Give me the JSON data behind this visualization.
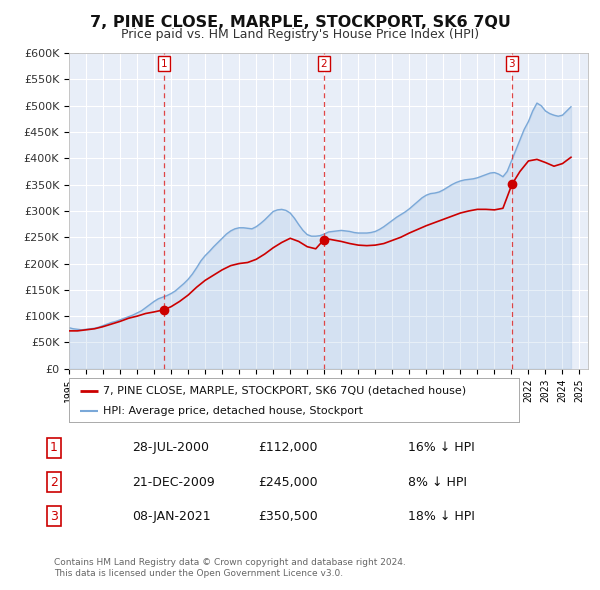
{
  "title": "7, PINE CLOSE, MARPLE, STOCKPORT, SK6 7QU",
  "subtitle": "Price paid vs. HM Land Registry's House Price Index (HPI)",
  "bg_color": "#ffffff",
  "plot_bg_color": "#e8eef8",
  "grid_color": "#ffffff",
  "hpi_color": "#7aa8d8",
  "price_color": "#cc0000",
  "marker_color": "#cc0000",
  "ylim": [
    0,
    600000
  ],
  "yticks": [
    0,
    50000,
    100000,
    150000,
    200000,
    250000,
    300000,
    350000,
    400000,
    450000,
    500000,
    550000,
    600000
  ],
  "xlim_start": 1995.0,
  "xlim_end": 2025.5,
  "sales": [
    {
      "num": 1,
      "date": "28-JUL-2000",
      "year": 2000.57,
      "price": 112000,
      "pct": "16%",
      "dir": "↓"
    },
    {
      "num": 2,
      "date": "21-DEC-2009",
      "year": 2009.97,
      "price": 245000,
      "pct": "8%",
      "dir": "↓"
    },
    {
      "num": 3,
      "date": "08-JAN-2021",
      "year": 2021.03,
      "price": 350500,
      "pct": "18%",
      "dir": "↓"
    }
  ],
  "legend_label_price": "7, PINE CLOSE, MARPLE, STOCKPORT, SK6 7QU (detached house)",
  "legend_label_hpi": "HPI: Average price, detached house, Stockport",
  "footer1": "Contains HM Land Registry data © Crown copyright and database right 2024.",
  "footer2": "This data is licensed under the Open Government Licence v3.0.",
  "hpi_data_x": [
    1995.0,
    1995.25,
    1995.5,
    1995.75,
    1996.0,
    1996.25,
    1996.5,
    1996.75,
    1997.0,
    1997.25,
    1997.5,
    1997.75,
    1998.0,
    1998.25,
    1998.5,
    1998.75,
    1999.0,
    1999.25,
    1999.5,
    1999.75,
    2000.0,
    2000.25,
    2000.5,
    2000.75,
    2001.0,
    2001.25,
    2001.5,
    2001.75,
    2002.0,
    2002.25,
    2002.5,
    2002.75,
    2003.0,
    2003.25,
    2003.5,
    2003.75,
    2004.0,
    2004.25,
    2004.5,
    2004.75,
    2005.0,
    2005.25,
    2005.5,
    2005.75,
    2006.0,
    2006.25,
    2006.5,
    2006.75,
    2007.0,
    2007.25,
    2007.5,
    2007.75,
    2008.0,
    2008.25,
    2008.5,
    2008.75,
    2009.0,
    2009.25,
    2009.5,
    2009.75,
    2010.0,
    2010.25,
    2010.5,
    2010.75,
    2011.0,
    2011.25,
    2011.5,
    2011.75,
    2012.0,
    2012.25,
    2012.5,
    2012.75,
    2013.0,
    2013.25,
    2013.5,
    2013.75,
    2014.0,
    2014.25,
    2014.5,
    2014.75,
    2015.0,
    2015.25,
    2015.5,
    2015.75,
    2016.0,
    2016.25,
    2016.5,
    2016.75,
    2017.0,
    2017.25,
    2017.5,
    2017.75,
    2018.0,
    2018.25,
    2018.5,
    2018.75,
    2019.0,
    2019.25,
    2019.5,
    2019.75,
    2020.0,
    2020.25,
    2020.5,
    2020.75,
    2021.0,
    2021.25,
    2021.5,
    2021.75,
    2022.0,
    2022.25,
    2022.5,
    2022.75,
    2023.0,
    2023.25,
    2023.5,
    2023.75,
    2024.0,
    2024.25,
    2024.5
  ],
  "hpi_data_y": [
    78000,
    76000,
    75000,
    74000,
    75000,
    76000,
    77000,
    79000,
    82000,
    85000,
    88000,
    90000,
    93000,
    96000,
    99000,
    102000,
    106000,
    110000,
    116000,
    122000,
    128000,
    133000,
    136000,
    139000,
    143000,
    148000,
    155000,
    162000,
    170000,
    180000,
    192000,
    205000,
    215000,
    223000,
    232000,
    240000,
    248000,
    256000,
    262000,
    266000,
    268000,
    268000,
    267000,
    266000,
    270000,
    276000,
    283000,
    291000,
    299000,
    302000,
    303000,
    301000,
    296000,
    286000,
    274000,
    263000,
    255000,
    252000,
    252000,
    253000,
    256000,
    260000,
    261000,
    262000,
    263000,
    262000,
    261000,
    259000,
    258000,
    258000,
    258000,
    259000,
    261000,
    265000,
    270000,
    276000,
    282000,
    288000,
    293000,
    298000,
    304000,
    311000,
    318000,
    325000,
    330000,
    333000,
    334000,
    336000,
    340000,
    345000,
    350000,
    354000,
    357000,
    359000,
    360000,
    361000,
    363000,
    366000,
    369000,
    372000,
    373000,
    370000,
    365000,
    375000,
    395000,
    415000,
    435000,
    455000,
    470000,
    490000,
    505000,
    500000,
    490000,
    485000,
    482000,
    480000,
    482000,
    490000,
    498000
  ],
  "price_data_x": [
    1995.0,
    1995.5,
    1996.0,
    1996.5,
    1997.0,
    1997.5,
    1998.0,
    1998.5,
    1999.0,
    1999.5,
    2000.0,
    2000.57,
    2001.0,
    2001.5,
    2002.0,
    2002.5,
    2003.0,
    2003.5,
    2004.0,
    2004.5,
    2005.0,
    2005.5,
    2006.0,
    2006.5,
    2007.0,
    2007.5,
    2008.0,
    2008.5,
    2009.0,
    2009.5,
    2009.97,
    2010.0,
    2010.5,
    2011.0,
    2011.5,
    2012.0,
    2012.5,
    2013.0,
    2013.5,
    2014.0,
    2014.5,
    2015.0,
    2015.5,
    2016.0,
    2016.5,
    2017.0,
    2017.5,
    2018.0,
    2018.5,
    2019.0,
    2019.5,
    2020.0,
    2020.5,
    2021.03,
    2021.5,
    2022.0,
    2022.5,
    2023.0,
    2023.5,
    2024.0,
    2024.5
  ],
  "price_data_y": [
    72000,
    72000,
    74000,
    76000,
    80000,
    85000,
    90000,
    96000,
    100000,
    105000,
    108000,
    112000,
    118000,
    128000,
    140000,
    155000,
    168000,
    178000,
    188000,
    196000,
    200000,
    202000,
    208000,
    218000,
    230000,
    240000,
    248000,
    242000,
    232000,
    228000,
    245000,
    248000,
    245000,
    242000,
    238000,
    235000,
    234000,
    235000,
    238000,
    244000,
    250000,
    258000,
    265000,
    272000,
    278000,
    284000,
    290000,
    296000,
    300000,
    303000,
    303000,
    302000,
    305000,
    350500,
    375000,
    395000,
    398000,
    392000,
    385000,
    390000,
    402000
  ]
}
